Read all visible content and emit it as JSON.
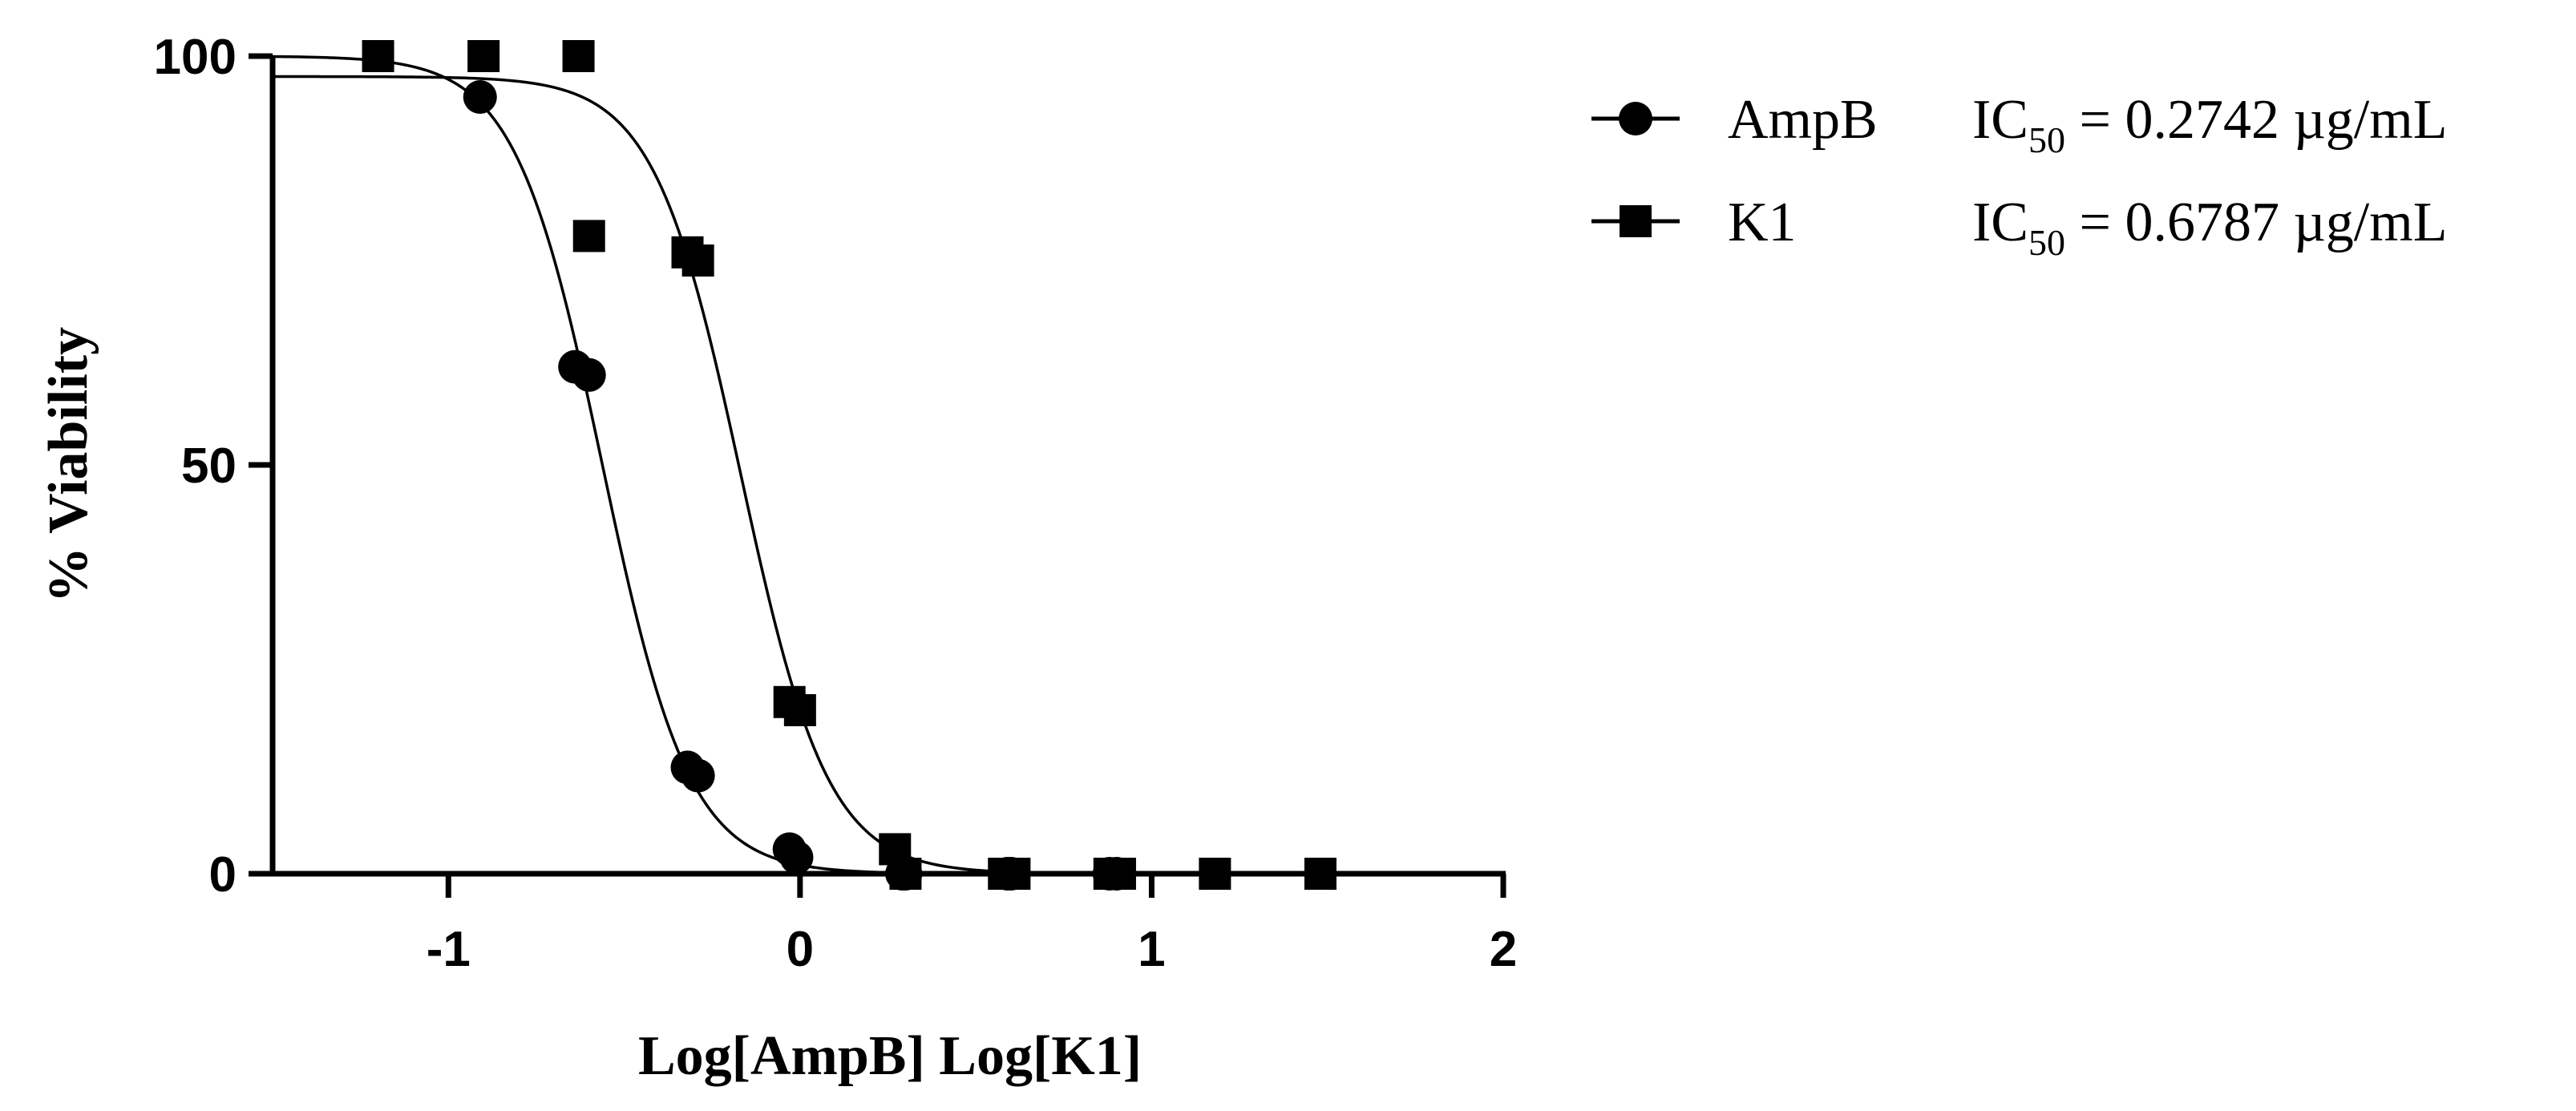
{
  "chart_data": {
    "type": "scatter",
    "xlabel": "Log[AmpB] Log[K1]",
    "ylabel": "% Viability",
    "xlim": [
      -1.5,
      2
    ],
    "ylim": [
      0,
      100
    ],
    "xticks": [
      {
        "value": -1,
        "label": "-1"
      },
      {
        "value": 0,
        "label": "0"
      },
      {
        "value": 1,
        "label": "1"
      },
      {
        "value": 2,
        "label": "2"
      }
    ],
    "yticks": [
      {
        "value": 0,
        "label": "0"
      },
      {
        "value": 50,
        "label": "50"
      },
      {
        "value": 100,
        "label": "100"
      }
    ],
    "grid": false,
    "legend_position": "top-right",
    "series": [
      {
        "name": "AmpB",
        "ic50_prefix": "IC",
        "ic50_sub": "50",
        "ic50_suffix": " = 0.2742 µg/mL",
        "marker": "circle",
        "color": "#000000",
        "points": [
          {
            "x": -0.91,
            "y": 95
          },
          {
            "x": -0.64,
            "y": 62
          },
          {
            "x": -0.6,
            "y": 61
          },
          {
            "x": -0.32,
            "y": 13
          },
          {
            "x": -0.29,
            "y": 12
          },
          {
            "x": -0.03,
            "y": 3
          },
          {
            "x": -0.01,
            "y": 2
          },
          {
            "x": 0.29,
            "y": 0
          },
          {
            "x": 0.3,
            "y": 0
          },
          {
            "x": 0.59,
            "y": 0
          },
          {
            "x": 0.6,
            "y": 0
          },
          {
            "x": 0.88,
            "y": 0
          },
          {
            "x": 0.9,
            "y": 0
          }
        ],
        "fit": {
          "top": 100,
          "bottom": 0,
          "log_ic50": -0.562,
          "hill": -3.5
        }
      },
      {
        "name": "K1",
        "ic50_prefix": "IC",
        "ic50_sub": "50",
        "ic50_suffix": " = 0.6787 µg/mL",
        "marker": "square",
        "color": "#000000",
        "points": [
          {
            "x": -1.2,
            "y": 100
          },
          {
            "x": -0.9,
            "y": 100
          },
          {
            "x": -0.63,
            "y": 100
          },
          {
            "x": -0.6,
            "y": 78
          },
          {
            "x": -0.32,
            "y": 76
          },
          {
            "x": -0.29,
            "y": 75
          },
          {
            "x": -0.03,
            "y": 21
          },
          {
            "x": 0.0,
            "y": 20
          },
          {
            "x": 0.27,
            "y": 3
          },
          {
            "x": 0.3,
            "y": 0
          },
          {
            "x": 0.58,
            "y": 0
          },
          {
            "x": 0.61,
            "y": 0
          },
          {
            "x": 0.88,
            "y": 0
          },
          {
            "x": 0.91,
            "y": 0
          },
          {
            "x": 1.18,
            "y": 0
          },
          {
            "x": 1.48,
            "y": 0
          }
        ],
        "fit": {
          "top": 97.5,
          "bottom": 0,
          "log_ic50": -0.168,
          "hill": -3.5
        }
      }
    ]
  }
}
